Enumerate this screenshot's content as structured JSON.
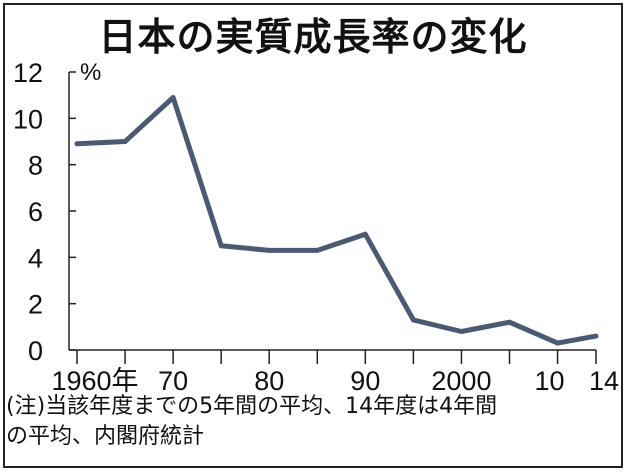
{
  "chart_data": {
    "type": "line",
    "title": "日本の実質成長率の変化",
    "ylabel": "%",
    "xlabel": "",
    "x": [
      1960,
      1965,
      1970,
      1975,
      1980,
      1985,
      1990,
      1995,
      2000,
      2005,
      2010,
      2014
    ],
    "values": [
      8.9,
      9.0,
      10.9,
      4.5,
      4.3,
      4.3,
      5.0,
      1.3,
      0.8,
      1.2,
      0.3,
      0.6
    ],
    "ylim": [
      0,
      12
    ],
    "xlim": [
      1960,
      2014
    ],
    "yticks": [
      "0",
      "2",
      "4",
      "6",
      "8",
      "10",
      "12"
    ],
    "xtick_labels": [
      "1960年",
      "70",
      "80",
      "90",
      "2000",
      "10",
      "14"
    ],
    "line_color": "#4a5a73",
    "grid": false
  },
  "note": {
    "line1": "(注)当該年度までの5年間の平均、14年度は4年間",
    "line2": "の平均、内閣府統計"
  }
}
